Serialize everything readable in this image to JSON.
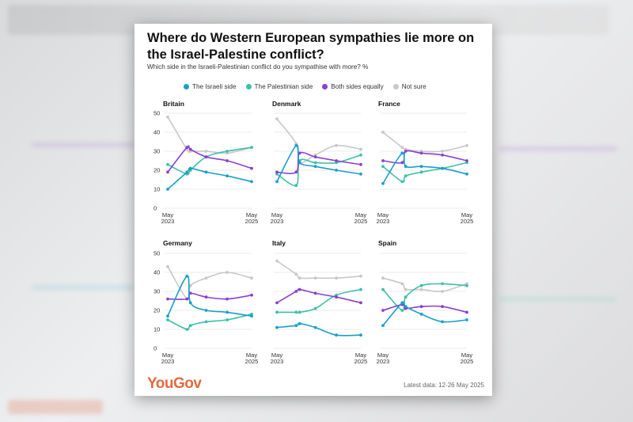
{
  "header": {
    "title": "Where do Western European sympathies lie more on the Israel-Palestine conflict?",
    "subtitle": "Which side in the Israeli-Palestinian conflict do you sympathise with more? %"
  },
  "legend": [
    {
      "label": "The Israeli side",
      "color": "#1a9fc9"
    },
    {
      "label": "The Palestinian side",
      "color": "#3cc0a8"
    },
    {
      "label": "Both sides equally",
      "color": "#8a3fd0"
    },
    {
      "label": "Not sure",
      "color": "#c8c8c8"
    }
  ],
  "footer": {
    "logo": "YouGov",
    "note": "Latest data: 12-26 May 2025"
  },
  "axis": {
    "y_ticks": [
      "50",
      "40",
      "30",
      "20",
      "10",
      "0"
    ],
    "x_start": [
      "May",
      "2023"
    ],
    "x_end": [
      "May",
      "2025"
    ]
  },
  "chart_data": {
    "type": "line",
    "x_unit": "months since May 2023",
    "x": [
      0,
      5.5,
      6.5,
      11,
      17,
      24
    ],
    "ylim": [
      0,
      50
    ],
    "grid": true,
    "legend_position": "top",
    "panels": [
      {
        "name": "Britain",
        "series": [
          {
            "name": "The Israeli side",
            "values": [
              10,
              19,
              21,
              19,
              17,
              14
            ]
          },
          {
            "name": "The Palestinian side",
            "values": [
              23,
              18,
              20,
              27,
              30,
              32
            ]
          },
          {
            "name": "Both sides equally",
            "values": [
              19,
              32,
              31,
              27,
              25,
              21
            ]
          },
          {
            "name": "Not sure",
            "values": [
              48,
              31,
              30,
              30,
              29,
              32
            ]
          }
        ]
      },
      {
        "name": "Denmark",
        "series": [
          {
            "name": "The Israeli side",
            "values": [
              14,
              33,
              24,
              22,
              20,
              18
            ]
          },
          {
            "name": "The Palestinian side",
            "values": [
              18,
              12,
              25,
              24,
              24,
              28
            ]
          },
          {
            "name": "Both sides equally",
            "values": [
              19,
              19,
              29,
              27,
              25,
              23
            ]
          },
          {
            "name": "Not sure",
            "values": [
              47,
              34,
              24,
              28,
              33,
              31
            ]
          }
        ]
      },
      {
        "name": "France",
        "series": [
          {
            "name": "The Israeli side",
            "values": [
              13,
              29,
              22,
              22,
              21,
              18
            ]
          },
          {
            "name": "The Palestinian side",
            "values": [
              22,
              14,
              17,
              19,
              21,
              24
            ]
          },
          {
            "name": "Both sides equally",
            "values": [
              25,
              24,
              30,
              29,
              28,
              25
            ]
          },
          {
            "name": "Not sure",
            "values": [
              40,
              32,
              31,
              30,
              30,
              33
            ]
          }
        ]
      },
      {
        "name": "Germany",
        "series": [
          {
            "name": "The Israeli side",
            "values": [
              17,
              38,
              24,
              20,
              19,
              17
            ]
          },
          {
            "name": "The Palestinian side",
            "values": [
              15,
              10,
              12,
              14,
              15,
              18
            ]
          },
          {
            "name": "Both sides equally",
            "values": [
              26,
              26,
              29,
              27,
              26,
              28
            ]
          },
          {
            "name": "Not sure",
            "values": [
              43,
              26,
              33,
              37,
              40,
              37
            ]
          }
        ]
      },
      {
        "name": "Italy",
        "series": [
          {
            "name": "The Israeli side",
            "values": [
              11,
              12,
              13,
              11,
              7,
              7
            ]
          },
          {
            "name": "The Palestinian side",
            "values": [
              19,
              19,
              19,
              21,
              28,
              31
            ]
          },
          {
            "name": "Both sides equally",
            "values": [
              24,
              30,
              31,
              29,
              27,
              24
            ]
          },
          {
            "name": "Not sure",
            "values": [
              46,
              39,
              37,
              37,
              37,
              38
            ]
          }
        ]
      },
      {
        "name": "Spain",
        "series": [
          {
            "name": "The Israeli side",
            "values": [
              12,
              24,
              22,
              18,
              14,
              15
            ]
          },
          {
            "name": "The Palestinian side",
            "values": [
              31,
              20,
              27,
              33,
              34,
              33
            ]
          },
          {
            "name": "Both sides equally",
            "values": [
              20,
              23,
              21,
              22,
              22,
              19
            ]
          },
          {
            "name": "Not sure",
            "values": [
              37,
              34,
              31,
              31,
              30,
              34
            ]
          }
        ]
      }
    ]
  }
}
